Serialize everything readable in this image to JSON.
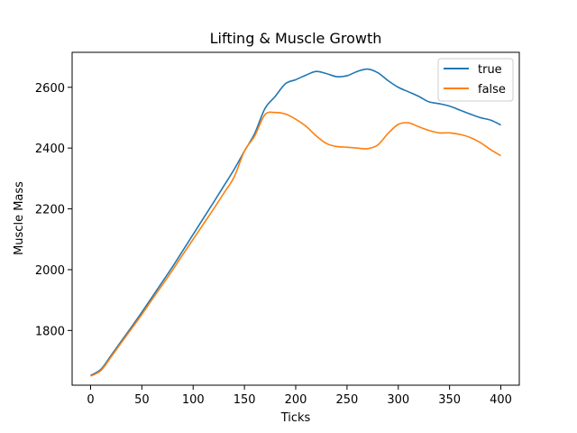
{
  "chart_data": {
    "type": "line",
    "title": "Lifting & Muscle Growth",
    "xlabel": "Ticks",
    "ylabel": "Muscle Mass",
    "xlim": [
      -18,
      418
    ],
    "ylim": [
      1620,
      2715
    ],
    "x_ticks": [
      0,
      50,
      100,
      150,
      200,
      250,
      300,
      350,
      400
    ],
    "y_ticks": [
      1800,
      2000,
      2200,
      2400,
      2600
    ],
    "grid": false,
    "legend_position": "top-right",
    "colors": {
      "true": "#1f77b4",
      "false": "#ff7f0e"
    },
    "x": [
      0,
      10,
      20,
      30,
      40,
      50,
      60,
      70,
      80,
      90,
      100,
      110,
      120,
      130,
      140,
      150,
      160,
      170,
      180,
      190,
      200,
      210,
      220,
      230,
      240,
      250,
      260,
      270,
      280,
      290,
      300,
      310,
      320,
      330,
      340,
      350,
      360,
      370,
      380,
      390,
      400
    ],
    "series": [
      {
        "name": "true",
        "values": [
          1652,
          1672,
          1718,
          1765,
          1812,
          1860,
          1910,
          1960,
          2010,
          2063,
          2116,
          2169,
          2222,
          2276,
          2330,
          2390,
          2448,
          2530,
          2570,
          2612,
          2625,
          2640,
          2652,
          2645,
          2635,
          2638,
          2652,
          2660,
          2648,
          2622,
          2600,
          2585,
          2570,
          2552,
          2546,
          2538,
          2525,
          2512,
          2500,
          2492,
          2476
        ]
      },
      {
        "name": "false",
        "values": [
          1650,
          1668,
          1713,
          1760,
          1806,
          1853,
          1902,
          1950,
          1999,
          2050,
          2100,
          2150,
          2200,
          2252,
          2305,
          2390,
          2440,
          2510,
          2517,
          2512,
          2495,
          2472,
          2440,
          2415,
          2405,
          2403,
          2400,
          2398,
          2410,
          2448,
          2478,
          2483,
          2470,
          2458,
          2450,
          2450,
          2445,
          2435,
          2418,
          2395,
          2375
        ]
      }
    ]
  }
}
